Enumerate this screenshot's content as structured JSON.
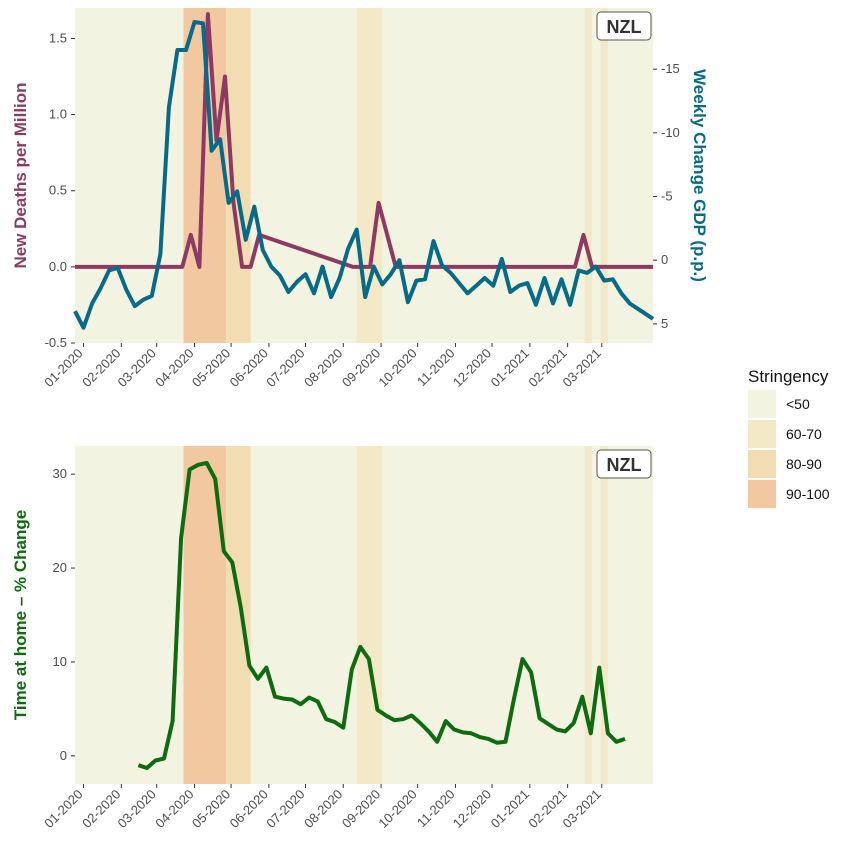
{
  "colors": {
    "panel_bg": "#f3f3e2",
    "deaths": "#8d3a63",
    "gdp": "#076a86",
    "home": "#0d6b10",
    "stringency": {
      "lt50": "#f3f3e2",
      "s60_70": "#f3e9c6",
      "s80_90": "#f2ddb3",
      "s90_100": "#f2c8a0"
    }
  },
  "legend": {
    "title": "Stringency",
    "items": [
      {
        "label": "<50",
        "key": "lt50"
      },
      {
        "label": "60-70",
        "key": "s60_70"
      },
      {
        "label": "80-90",
        "key": "s80_90"
      },
      {
        "label": "90-100",
        "key": "s90_100"
      }
    ]
  },
  "chart_data": [
    {
      "type": "line",
      "country_label": "NZL",
      "ylabel": "New Deaths per Million",
      "y2label": "Weekly Change GDP (p.p.)",
      "ylim": [
        -0.5,
        1.7
      ],
      "y2lim": [
        6.5,
        -19.8
      ],
      "y2_reversed": true,
      "yticks": [
        -0.5,
        0.0,
        0.5,
        1.0,
        1.5
      ],
      "yticks_labels": [
        "-0.5",
        "0.0",
        "0.5",
        "1.0",
        "1.5"
      ],
      "y2ticks": [
        5,
        0,
        -5,
        -10,
        -15
      ],
      "y2ticks_labels": [
        "5",
        "0",
        "-5",
        "-10",
        "-15"
      ],
      "x_ticks": [
        "2020-01-01",
        "2020-02-01",
        "2020-03-01",
        "2020-04-01",
        "2020-05-01",
        "2020-06-01",
        "2020-07-01",
        "2020-08-01",
        "2020-09-01",
        "2020-10-01",
        "2020-11-01",
        "2020-12-01",
        "2021-01-01",
        "2021-02-01",
        "2021-03-01"
      ],
      "x_tick_labels": [
        "01-2020",
        "02-2020",
        "03-2020",
        "04-2020",
        "05-2020",
        "06-2020",
        "07-2020",
        "08-2020",
        "09-2020",
        "10-2020",
        "11-2020",
        "12-2020",
        "01-2021",
        "02-2021",
        "03-2021"
      ],
      "stringency_bands": [
        {
          "start": "2020-03-23",
          "end": "2020-04-27",
          "level": "s90_100"
        },
        {
          "start": "2020-04-27",
          "end": "2020-05-17",
          "level": "s80_90"
        },
        {
          "start": "2020-08-12",
          "end": "2020-09-02",
          "level": "s60_70"
        },
        {
          "start": "2021-02-15",
          "end": "2021-02-21",
          "level": "s60_70"
        },
        {
          "start": "2021-02-28",
          "end": "2021-03-06",
          "level": "s60_70"
        }
      ],
      "series": [
        {
          "name": "New Deaths per Million",
          "axis": "left",
          "color_key": "deaths",
          "x": [
            "2019-12-25",
            "2020-03-15",
            "2020-03-22",
            "2020-03-29",
            "2020-04-05",
            "2020-04-12",
            "2020-04-19",
            "2020-04-26",
            "2020-05-03",
            "2020-05-10",
            "2020-05-17",
            "2020-05-24",
            "2020-08-09",
            "2020-08-16",
            "2020-08-23",
            "2020-08-30",
            "2020-09-06",
            "2020-09-13",
            "2021-02-07",
            "2021-02-14",
            "2021-02-21",
            "2021-04-12"
          ],
          "y": [
            0,
            0,
            0,
            0.21,
            0,
            1.66,
            0.83,
            1.25,
            0.42,
            0,
            0,
            0.21,
            0,
            0,
            0,
            0.42,
            0.21,
            0,
            0,
            0.21,
            0,
            0
          ]
        },
        {
          "name": "Weekly Change GDP (p.p.)",
          "axis": "right",
          "color_key": "gdp",
          "x": [
            "2019-12-25",
            "2020-01-01",
            "2020-01-08",
            "2020-01-15",
            "2020-01-22",
            "2020-01-29",
            "2020-02-05",
            "2020-02-12",
            "2020-02-19",
            "2020-02-26",
            "2020-03-04",
            "2020-03-11",
            "2020-03-18",
            "2020-03-25",
            "2020-04-01",
            "2020-04-08",
            "2020-04-15",
            "2020-04-22",
            "2020-04-29",
            "2020-05-06",
            "2020-05-13",
            "2020-05-20",
            "2020-05-27",
            "2020-06-03",
            "2020-06-10",
            "2020-06-17",
            "2020-06-24",
            "2020-07-01",
            "2020-07-08",
            "2020-07-15",
            "2020-07-22",
            "2020-07-29",
            "2020-08-05",
            "2020-08-12",
            "2020-08-19",
            "2020-08-26",
            "2020-09-02",
            "2020-09-09",
            "2020-09-16",
            "2020-09-23",
            "2020-09-30",
            "2020-10-07",
            "2020-10-14",
            "2020-10-21",
            "2020-10-28",
            "2020-11-04",
            "2020-11-11",
            "2020-11-18",
            "2020-11-25",
            "2020-12-02",
            "2020-12-09",
            "2020-12-16",
            "2020-12-23",
            "2020-12-30",
            "2021-01-06",
            "2021-01-13",
            "2021-01-20",
            "2021-01-27",
            "2021-02-03",
            "2021-02-10",
            "2021-02-17",
            "2021-02-24",
            "2021-03-03",
            "2021-03-10",
            "2021-03-17",
            "2021-03-24",
            "2021-04-12"
          ],
          "y": [
            4.0,
            5.3,
            3.4,
            2.2,
            0.8,
            0.6,
            2.3,
            3.6,
            3.1,
            2.8,
            -0.5,
            -12.0,
            -16.5,
            -16.5,
            -18.7,
            -18.6,
            -8.6,
            -9.5,
            -4.5,
            -5.4,
            -1.6,
            -4.2,
            -0.8,
            0.5,
            1.2,
            2.5,
            1.7,
            1.1,
            2.6,
            0.5,
            2.9,
            1.4,
            -0.9,
            -2.4,
            2.9,
            0.5,
            1.9,
            1.1,
            0.0,
            3.3,
            1.6,
            1.5,
            -1.5,
            0.4,
            1.0,
            1.8,
            2.6,
            2.0,
            1.4,
            2.0,
            -0.1,
            2.5,
            2.0,
            1.8,
            3.5,
            1.4,
            3.4,
            1.5,
            3.5,
            0.8,
            1.0,
            0.5,
            1.6,
            1.5,
            2.6,
            3.4,
            4.6
          ]
        }
      ]
    },
    {
      "type": "line",
      "country_label": "NZL",
      "ylabel": "Time at home – % Change",
      "ylim": [
        -3,
        33
      ],
      "yticks": [
        0,
        10,
        20,
        30
      ],
      "yticks_labels": [
        "0",
        "10",
        "20",
        "30"
      ],
      "x_ticks": [
        "2020-01-01",
        "2020-02-01",
        "2020-03-01",
        "2020-04-01",
        "2020-05-01",
        "2020-06-01",
        "2020-07-01",
        "2020-08-01",
        "2020-09-01",
        "2020-10-01",
        "2020-11-01",
        "2020-12-01",
        "2021-01-01",
        "2021-02-01",
        "2021-03-01"
      ],
      "x_tick_labels": [
        "01-2020",
        "02-2020",
        "03-2020",
        "04-2020",
        "05-2020",
        "06-2020",
        "07-2020",
        "08-2020",
        "09-2020",
        "10-2020",
        "11-2020",
        "12-2020",
        "01-2021",
        "02-2021",
        "03-2021"
      ],
      "stringency_bands": [
        {
          "start": "2020-03-23",
          "end": "2020-04-27",
          "level": "s90_100"
        },
        {
          "start": "2020-04-27",
          "end": "2020-05-17",
          "level": "s80_90"
        },
        {
          "start": "2020-08-12",
          "end": "2020-09-02",
          "level": "s60_70"
        },
        {
          "start": "2021-02-15",
          "end": "2021-02-21",
          "level": "s60_70"
        },
        {
          "start": "2021-02-28",
          "end": "2021-03-06",
          "level": "s60_70"
        }
      ],
      "series": [
        {
          "name": "Time at home – % Change",
          "axis": "left",
          "color_key": "home",
          "x": [
            "2020-02-15",
            "2020-02-22",
            "2020-02-29",
            "2020-03-07",
            "2020-03-14",
            "2020-03-21",
            "2020-03-28",
            "2020-04-04",
            "2020-04-11",
            "2020-04-18",
            "2020-04-25",
            "2020-05-02",
            "2020-05-09",
            "2020-05-16",
            "2020-05-23",
            "2020-05-30",
            "2020-06-06",
            "2020-06-13",
            "2020-06-20",
            "2020-06-27",
            "2020-07-04",
            "2020-07-11",
            "2020-07-18",
            "2020-07-25",
            "2020-08-01",
            "2020-08-08",
            "2020-08-15",
            "2020-08-22",
            "2020-08-29",
            "2020-09-05",
            "2020-09-12",
            "2020-09-19",
            "2020-09-26",
            "2020-10-03",
            "2020-10-10",
            "2020-10-17",
            "2020-10-24",
            "2020-10-31",
            "2020-11-07",
            "2020-11-14",
            "2020-11-21",
            "2020-11-28",
            "2020-12-05",
            "2020-12-12",
            "2020-12-19",
            "2020-12-26",
            "2021-01-02",
            "2021-01-09",
            "2021-01-16",
            "2021-01-23",
            "2021-01-30",
            "2021-02-06",
            "2021-02-13",
            "2021-02-20",
            "2021-02-27",
            "2021-03-06",
            "2021-03-13",
            "2021-03-20"
          ],
          "y": [
            -1.0,
            -1.3,
            -0.5,
            -0.3,
            3.7,
            23.2,
            30.5,
            31.0,
            31.2,
            29.5,
            21.8,
            20.6,
            15.8,
            9.6,
            8.2,
            9.4,
            6.3,
            6.1,
            6.0,
            5.5,
            6.2,
            5.8,
            3.9,
            3.6,
            3.0,
            9.2,
            11.6,
            10.3,
            4.9,
            4.3,
            3.8,
            3.9,
            4.3,
            3.5,
            2.6,
            1.5,
            3.7,
            2.8,
            2.5,
            2.4,
            2.0,
            1.8,
            1.4,
            1.5,
            6.1,
            10.3,
            8.9,
            4.0,
            3.4,
            2.8,
            2.6,
            3.5,
            6.3,
            2.4,
            9.4,
            2.4,
            1.5,
            1.8
          ]
        }
      ]
    }
  ]
}
